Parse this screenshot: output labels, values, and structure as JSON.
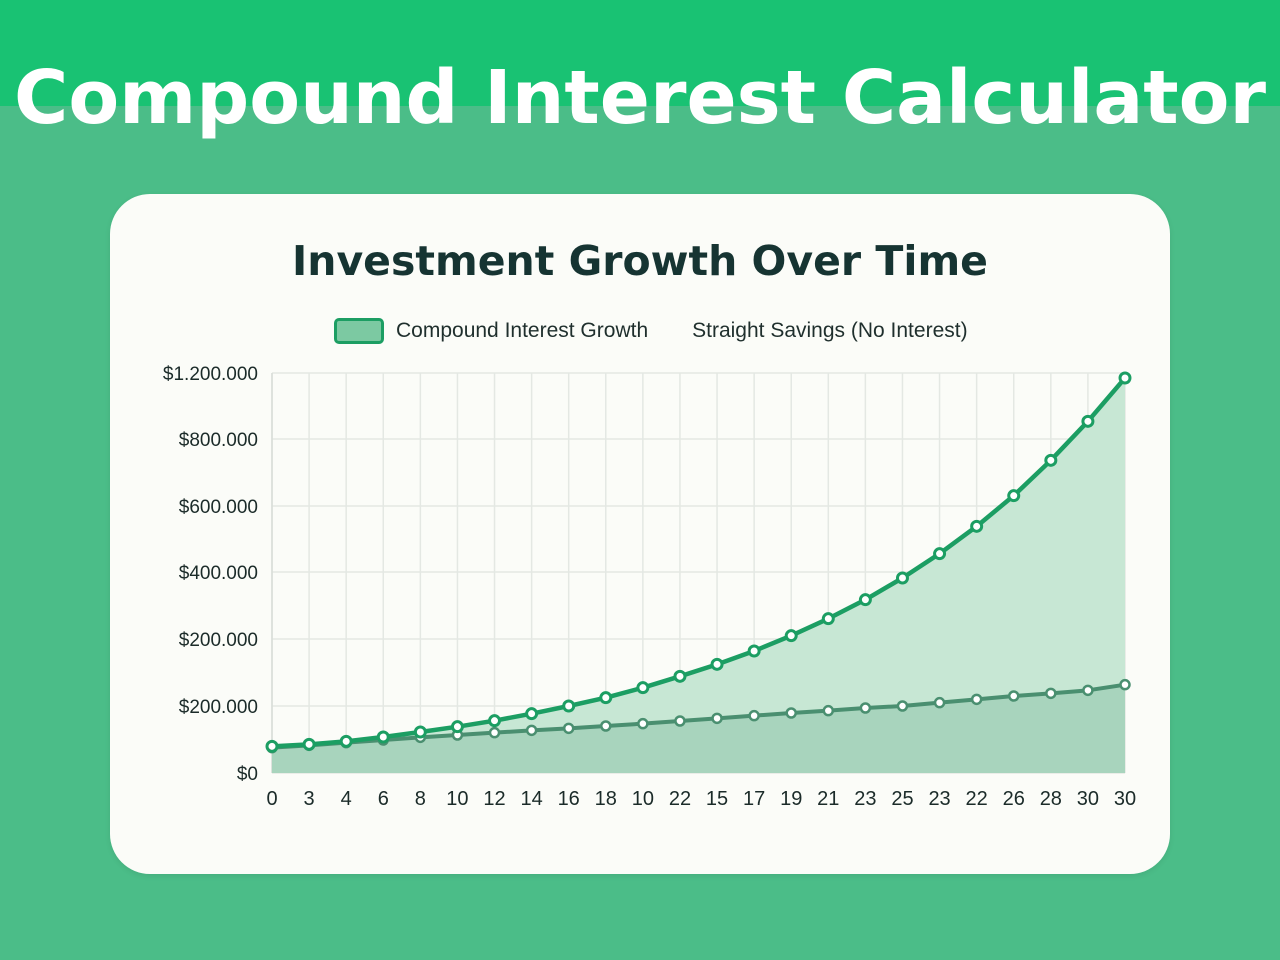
{
  "header": {
    "title": "Compound Interest Calculator"
  },
  "colors": {
    "background": "#4bbd88",
    "header_band": "#19c273",
    "card": "#fbfcf8",
    "compound_line": "#1c9e63",
    "compound_fill": "#c7e7d4",
    "savings_line": "#4a8f70",
    "savings_fill": "#a8d4bd"
  },
  "chart_data": {
    "type": "area",
    "title": "Investment Growth Over Time",
    "xlabel": "",
    "ylabel": "",
    "x_tick_labels": [
      "0",
      "3",
      "4",
      "6",
      "8",
      "10",
      "12",
      "14",
      "16",
      "18",
      "10",
      "22",
      "15",
      "17",
      "19",
      "21",
      "23",
      "25",
      "23",
      "22",
      "26",
      "28",
      "30",
      "30"
    ],
    "y_tick_labels": [
      "$0",
      "$200.000",
      "$200.000",
      "$400.000",
      "$600.000",
      "$800.000",
      "$1.200.000"
    ],
    "ylim": [
      0,
      1200000
    ],
    "grid": true,
    "legend_position": "top",
    "series": [
      {
        "name": "Compound Interest Growth",
        "values": [
          80000,
          86000,
          95000,
          108000,
          123000,
          139000,
          157000,
          178000,
          201000,
          226000,
          256000,
          290000,
          326000,
          366000,
          412000,
          463000,
          520000,
          585000,
          658000,
          740000,
          832000,
          938000,
          1055000,
          1185000
        ]
      },
      {
        "name": "Straight Savings (No Interest)",
        "values": [
          76000,
          83000,
          91000,
          99000,
          107000,
          114000,
          121000,
          128000,
          134000,
          141000,
          148000,
          156000,
          164000,
          172000,
          180000,
          187000,
          195000,
          201000,
          211000,
          221000,
          231000,
          239000,
          248000,
          265000
        ]
      }
    ]
  }
}
